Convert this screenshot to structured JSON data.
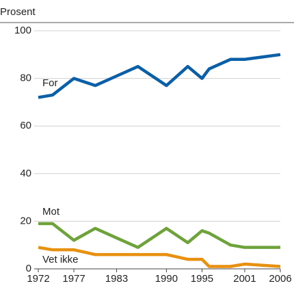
{
  "chart_data": {
    "type": "line",
    "ylabel": "Prosent",
    "x": [
      1972,
      1974,
      1977,
      1980,
      1983,
      1986,
      1990,
      1993,
      1995,
      1996,
      1999,
      2001,
      2006
    ],
    "series": [
      {
        "name": "For",
        "color": "#0a5fa6",
        "values": [
          72,
          73,
          80,
          77,
          81,
          85,
          77,
          85,
          80,
          84,
          88,
          88,
          90
        ]
      },
      {
        "name": "Mot",
        "color": "#6ea23a",
        "values": [
          19,
          19,
          12,
          17,
          13,
          9,
          17,
          11,
          16,
          15,
          10,
          9,
          9
        ]
      },
      {
        "name": "Vet ikke",
        "color": "#e8900f",
        "values": [
          9,
          8,
          8,
          6,
          6,
          6,
          6,
          4,
          4,
          1,
          1,
          2,
          1
        ]
      }
    ],
    "xlim": [
      1972,
      2006
    ],
    "xticks": [
      1972,
      1977,
      1983,
      1990,
      1995,
      2001,
      2006
    ],
    "ylim": [
      0,
      100
    ],
    "yticks": [
      0,
      20,
      40,
      60,
      80,
      100
    ],
    "grid": true
  }
}
